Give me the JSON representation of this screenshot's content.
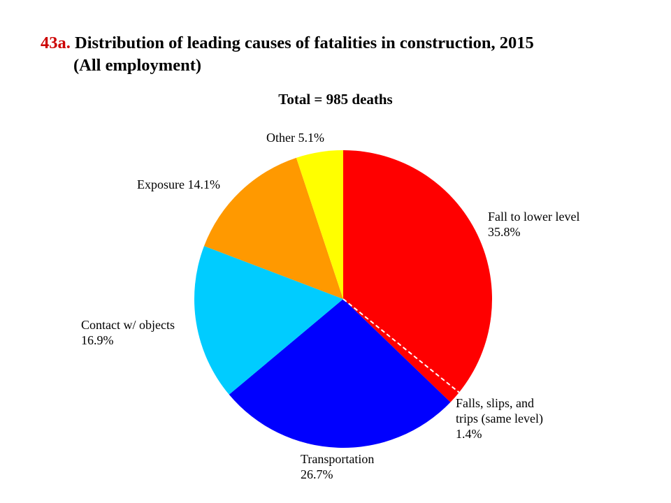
{
  "header": {
    "figure_number": "43a.",
    "title_line1": "Distribution of leading causes of fatalities in construction, 2015",
    "title_line2": "(All employment)"
  },
  "chart_data": {
    "type": "pie",
    "title": "43a. Distribution of leading causes of fatalities in construction, 2015 (All employment)",
    "subtitle": "Total = 985 deaths",
    "start_angle_deg": 0,
    "direction": "clockwise",
    "slices": [
      {
        "name": "Fall to lower level",
        "value": 35.8,
        "label_lines": [
          "Fall to lower level",
          "35.8%"
        ],
        "color": "#ff0000"
      },
      {
        "name": "Falls, slips, and trips (same level)",
        "value": 1.4,
        "label_lines": [
          "Falls, slips, and",
          "trips (same level)",
          "1.4%"
        ],
        "color": "#ff0000"
      },
      {
        "name": "Transportation",
        "value": 26.7,
        "label_lines": [
          "Transportation",
          "26.7%"
        ],
        "color": "#0000ff"
      },
      {
        "name": "Contact w/ objects",
        "value": 16.9,
        "label_lines": [
          "Contact w/ objects",
          "16.9%"
        ],
        "color": "#00ccff"
      },
      {
        "name": "Exposure",
        "value": 14.1,
        "label_lines": [
          "Exposure 14.1%"
        ],
        "color": "#ff9900"
      },
      {
        "name": "Other",
        "value": 5.1,
        "label_lines": [
          "Other 5.1%"
        ],
        "color": "#ffff00"
      }
    ]
  }
}
